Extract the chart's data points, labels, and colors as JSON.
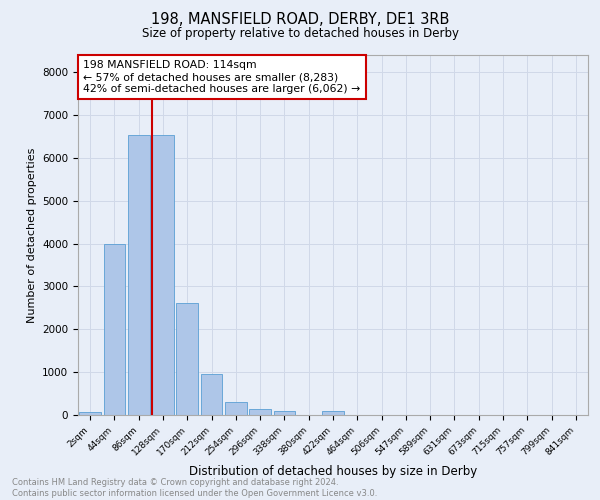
{
  "title_line1": "198, MANSFIELD ROAD, DERBY, DE1 3RB",
  "title_line2": "Size of property relative to detached houses in Derby",
  "xlabel": "Distribution of detached houses by size in Derby",
  "ylabel": "Number of detached properties",
  "categories": [
    "2sqm",
    "44sqm",
    "86sqm",
    "128sqm",
    "170sqm",
    "212sqm",
    "254sqm",
    "296sqm",
    "338sqm",
    "380sqm",
    "422sqm",
    "464sqm",
    "506sqm",
    "547sqm",
    "589sqm",
    "631sqm",
    "673sqm",
    "715sqm",
    "757sqm",
    "799sqm",
    "841sqm"
  ],
  "values": [
    80,
    3980,
    6530,
    6530,
    2610,
    950,
    310,
    130,
    100,
    0,
    100,
    0,
    0,
    0,
    0,
    0,
    0,
    0,
    0,
    0,
    0
  ],
  "bar_color": "#aec6e8",
  "bar_edge_color": "#5a9fd4",
  "vline_color": "#cc0000",
  "vline_x_index": 2.55,
  "annotation_text": "198 MANSFIELD ROAD: 114sqm\n← 57% of detached houses are smaller (8,283)\n42% of semi-detached houses are larger (6,062) →",
  "annotation_box_color": "#ffffff",
  "annotation_box_edge": "#cc0000",
  "ylim": [
    0,
    8400
  ],
  "yticks": [
    0,
    1000,
    2000,
    3000,
    4000,
    5000,
    6000,
    7000,
    8000
  ],
  "grid_color": "#d0d8e8",
  "bg_color": "#e8eef8",
  "footer_text": "Contains HM Land Registry data © Crown copyright and database right 2024.\nContains public sector information licensed under the Open Government Licence v3.0.",
  "footer_color": "#888888"
}
